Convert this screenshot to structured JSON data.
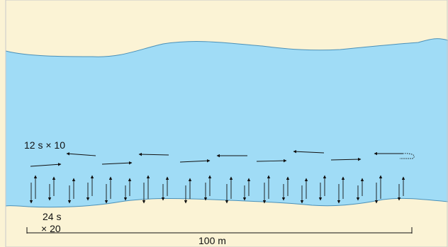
{
  "colors": {
    "water": "#a0dcf6",
    "bank": "#fbf3d5",
    "shore_line": "#4a90b8",
    "ink": "#111111",
    "frame": "#c9c9c9"
  },
  "labels": {
    "horizontal_set": "12 s × 10",
    "vertical_set_line1": "24 s",
    "vertical_set_line2": "× 20",
    "scale": "100 m"
  }
}
